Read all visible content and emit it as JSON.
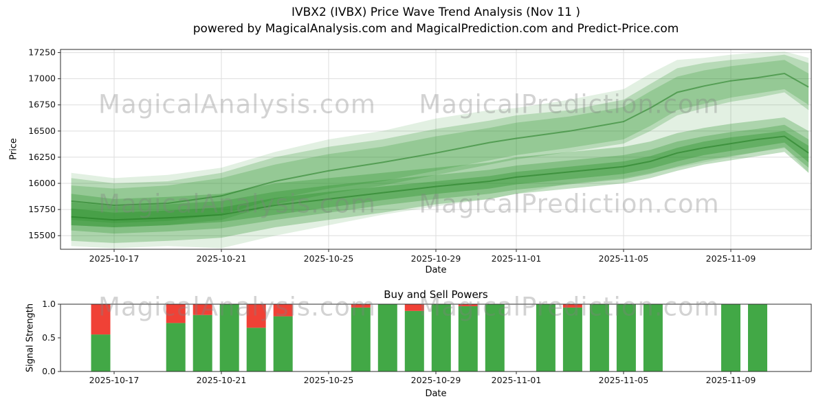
{
  "title": {
    "line1": "IVBX2 (IVBX) Price Wave Trend Analysis (Nov 11 )",
    "line2": "powered by MagicalAnalysis.com and MagicalPrediction.com and Predict-Price.com"
  },
  "watermarks": {
    "analysis": "MagicalAnalysis.com",
    "prediction": "MagicalPrediction.com"
  },
  "colors": {
    "band_green": "#228B22",
    "line_green": "#1f7a1f",
    "bar_green": "#42a846",
    "bar_red": "#f04136",
    "grid": "#dddddd",
    "spine": "#2b2b2b",
    "watermark": "#9e9e9e"
  },
  "chart_data": [
    {
      "type": "area",
      "title": "IVBX2 (IVBX) Price Wave Trend Analysis (Nov 11 )",
      "xlabel": "Date",
      "ylabel": "Price",
      "legend": "none",
      "grid": true,
      "x_ticks": [
        "2025-10-17",
        "2025-10-21",
        "2025-10-25",
        "2025-10-29",
        "2025-11-01",
        "2025-11-05",
        "2025-11-09"
      ],
      "x_tick_days": [
        2,
        6,
        10,
        14,
        17,
        21,
        25
      ],
      "xlim_days": [
        0,
        28
      ],
      "y_ticks": [
        15500,
        15750,
        16000,
        16250,
        16500,
        16750,
        17000,
        17250
      ],
      "ylim": [
        15370,
        17280
      ],
      "bands": [
        {
          "name": "outer-envelope",
          "opacity": 0.13,
          "points": [
            [
              0.4,
              15400,
              16100
            ],
            [
              2,
              15380,
              16050
            ],
            [
              4,
              15400,
              16080
            ],
            [
              6,
              15380,
              16150
            ],
            [
              8,
              15500,
              16300
            ],
            [
              10,
              15600,
              16420
            ],
            [
              12,
              15700,
              16500
            ],
            [
              14,
              15780,
              16620
            ],
            [
              16,
              15850,
              16700
            ],
            [
              17,
              15900,
              16720
            ],
            [
              19,
              16000,
              16800
            ],
            [
              21,
              16050,
              16900
            ],
            [
              22,
              16100,
              17050
            ],
            [
              23,
              16150,
              17180
            ],
            [
              24,
              16200,
              17200
            ],
            [
              25,
              16250,
              17230
            ],
            [
              26,
              16300,
              17250
            ],
            [
              27,
              16350,
              17260
            ],
            [
              27.9,
              16100,
              17200
            ]
          ]
        },
        {
          "name": "upper-band-wide",
          "opacity": 0.22,
          "points": [
            [
              0.4,
              15600,
              16050
            ],
            [
              2,
              15580,
              16000
            ],
            [
              4,
              15600,
              16020
            ],
            [
              6,
              15650,
              16100
            ],
            [
              8,
              15800,
              16250
            ],
            [
              10,
              15900,
              16350
            ],
            [
              12,
              15980,
              16420
            ],
            [
              14,
              16080,
              16520
            ],
            [
              16,
              16180,
              16600
            ],
            [
              17,
              16230,
              16650
            ],
            [
              19,
              16300,
              16700
            ],
            [
              21,
              16380,
              16800
            ],
            [
              22,
              16500,
              16950
            ],
            [
              23,
              16650,
              17100
            ],
            [
              24,
              16720,
              17150
            ],
            [
              25,
              16780,
              17180
            ],
            [
              26,
              16820,
              17200
            ],
            [
              27,
              16870,
              17230
            ],
            [
              27.9,
              16700,
              17150
            ]
          ]
        },
        {
          "name": "upper-band-core",
          "opacity": 0.22,
          "points": [
            [
              0.4,
              15650,
              15980
            ],
            [
              2,
              15620,
              15950
            ],
            [
              4,
              15640,
              15980
            ],
            [
              6,
              15700,
              16050
            ],
            [
              8,
              15850,
              16180
            ],
            [
              10,
              15950,
              16280
            ],
            [
              12,
              16020,
              16350
            ],
            [
              14,
              16120,
              16450
            ],
            [
              16,
              16220,
              16530
            ],
            [
              17,
              16270,
              16580
            ],
            [
              19,
              16340,
              16640
            ],
            [
              21,
              16420,
              16730
            ],
            [
              22,
              16550,
              16880
            ],
            [
              23,
              16700,
              17020
            ],
            [
              24,
              16760,
              17080
            ],
            [
              25,
              16820,
              17120
            ],
            [
              26,
              16860,
              17150
            ],
            [
              27,
              16900,
              17180
            ],
            [
              27.9,
              16750,
              17050
            ]
          ]
        },
        {
          "name": "lower-band-wide",
          "opacity": 0.28,
          "points": [
            [
              0.4,
              15450,
              15900
            ],
            [
              2,
              15430,
              15850
            ],
            [
              4,
              15450,
              15870
            ],
            [
              6,
              15480,
              15900
            ],
            [
              8,
              15580,
              16000
            ],
            [
              10,
              15650,
              16050
            ],
            [
              12,
              15720,
              16100
            ],
            [
              14,
              15800,
              16150
            ],
            [
              16,
              15850,
              16200
            ],
            [
              17,
              15900,
              16250
            ],
            [
              19,
              15950,
              16300
            ],
            [
              21,
              16000,
              16350
            ],
            [
              22,
              16050,
              16400
            ],
            [
              23,
              16120,
              16480
            ],
            [
              24,
              16180,
              16530
            ],
            [
              25,
              16220,
              16570
            ],
            [
              26,
              16260,
              16600
            ],
            [
              27,
              16300,
              16630
            ],
            [
              27.9,
              16100,
              16500
            ]
          ]
        },
        {
          "name": "lower-band-mid",
          "opacity": 0.28,
          "points": [
            [
              0.4,
              15550,
              15820
            ],
            [
              2,
              15520,
              15780
            ],
            [
              4,
              15540,
              15800
            ],
            [
              6,
              15570,
              15830
            ],
            [
              8,
              15650,
              15920
            ],
            [
              10,
              15720,
              15980
            ],
            [
              12,
              15790,
              16030
            ],
            [
              14,
              15850,
              16080
            ],
            [
              16,
              15900,
              16130
            ],
            [
              17,
              15940,
              16170
            ],
            [
              19,
              15990,
              16220
            ],
            [
              21,
              16040,
              16270
            ],
            [
              22,
              16090,
              16320
            ],
            [
              23,
              16160,
              16400
            ],
            [
              24,
              16220,
              16450
            ],
            [
              25,
              16260,
              16490
            ],
            [
              26,
              16300,
              16520
            ],
            [
              27,
              16340,
              16560
            ],
            [
              27.9,
              16150,
              16420
            ]
          ]
        },
        {
          "name": "lower-band-core",
          "opacity": 0.33,
          "points": [
            [
              0.4,
              15600,
              15760
            ],
            [
              2,
              15580,
              15720
            ],
            [
              4,
              15600,
              15740
            ],
            [
              6,
              15630,
              15770
            ],
            [
              8,
              15700,
              15860
            ],
            [
              10,
              15770,
              15920
            ],
            [
              12,
              15840,
              15970
            ],
            [
              14,
              15900,
              16020
            ],
            [
              16,
              15950,
              16070
            ],
            [
              17,
              15990,
              16110
            ],
            [
              19,
              16040,
              16160
            ],
            [
              21,
              16090,
              16210
            ],
            [
              22,
              16140,
              16260
            ],
            [
              23,
              16210,
              16340
            ],
            [
              24,
              16270,
              16400
            ],
            [
              25,
              16310,
              16440
            ],
            [
              26,
              16350,
              16470
            ],
            [
              27,
              16390,
              16500
            ],
            [
              27.9,
              16200,
              16360
            ]
          ]
        }
      ],
      "center_lines": [
        {
          "name": "upper-trend",
          "points": [
            [
              0.4,
              15830
            ],
            [
              2,
              15790
            ],
            [
              4,
              15810
            ],
            [
              6,
              15880
            ],
            [
              8,
              16020
            ],
            [
              10,
              16120
            ],
            [
              12,
              16200
            ],
            [
              14,
              16290
            ],
            [
              16,
              16390
            ],
            [
              17,
              16430
            ],
            [
              19,
              16500
            ],
            [
              21,
              16590
            ],
            [
              22,
              16720
            ],
            [
              23,
              16870
            ],
            [
              24,
              16930
            ],
            [
              25,
              16980
            ],
            [
              26,
              17010
            ],
            [
              27,
              17050
            ],
            [
              27.9,
              16920
            ]
          ]
        },
        {
          "name": "lower-trend",
          "points": [
            [
              0.4,
              15680
            ],
            [
              2,
              15650
            ],
            [
              4,
              15670
            ],
            [
              6,
              15700
            ],
            [
              8,
              15790
            ],
            [
              10,
              15850
            ],
            [
              12,
              15910
            ],
            [
              14,
              15970
            ],
            [
              16,
              16020
            ],
            [
              17,
              16060
            ],
            [
              19,
              16110
            ],
            [
              21,
              16160
            ],
            [
              22,
              16210
            ],
            [
              23,
              16290
            ],
            [
              24,
              16340
            ],
            [
              25,
              16380
            ],
            [
              26,
              16420
            ],
            [
              27,
              16450
            ],
            [
              27.9,
              16290
            ]
          ]
        }
      ]
    },
    {
      "type": "bar",
      "title": "Buy and Sell Powers",
      "xlabel": "Date",
      "ylabel": "Signal Strength",
      "grid": false,
      "x_ticks": [
        "2025-10-17",
        "2025-10-21",
        "2025-10-25",
        "2025-10-29",
        "2025-11-01",
        "2025-11-05",
        "2025-11-09"
      ],
      "x_tick_days": [
        2,
        6,
        10,
        14,
        17,
        21,
        25
      ],
      "xlim_days": [
        0,
        28
      ],
      "y_ticks": [
        "0.0",
        "0.5",
        "1.0"
      ],
      "ylim": [
        0,
        1
      ],
      "bars": [
        {
          "day": 1.5,
          "buy": 0.55,
          "sell": 0.45
        },
        {
          "day": 4.3,
          "buy": 0.72,
          "sell": 0.28
        },
        {
          "day": 5.3,
          "buy": 0.84,
          "sell": 0.16
        },
        {
          "day": 6.3,
          "buy": 1.0,
          "sell": 0
        },
        {
          "day": 7.3,
          "buy": 0.65,
          "sell": 0.35
        },
        {
          "day": 8.3,
          "buy": 0.82,
          "sell": 0.18
        },
        {
          "day": 11.2,
          "buy": 0.95,
          "sell": 0.05
        },
        {
          "day": 12.2,
          "buy": 1.0,
          "sell": 0
        },
        {
          "day": 13.2,
          "buy": 0.9,
          "sell": 0.1
        },
        {
          "day": 14.2,
          "buy": 1.0,
          "sell": 0
        },
        {
          "day": 15.2,
          "buy": 0.97,
          "sell": 0.03
        },
        {
          "day": 16.2,
          "buy": 1.0,
          "sell": 0
        },
        {
          "day": 18.1,
          "buy": 1.0,
          "sell": 0
        },
        {
          "day": 19.1,
          "buy": 0.95,
          "sell": 0.05
        },
        {
          "day": 20.1,
          "buy": 1.0,
          "sell": 0
        },
        {
          "day": 21.1,
          "buy": 1.0,
          "sell": 0
        },
        {
          "day": 22.1,
          "buy": 1.0,
          "sell": 0
        },
        {
          "day": 25.0,
          "buy": 1.0,
          "sell": 0
        },
        {
          "day": 26.0,
          "buy": 1.0,
          "sell": 0
        }
      ]
    }
  ]
}
